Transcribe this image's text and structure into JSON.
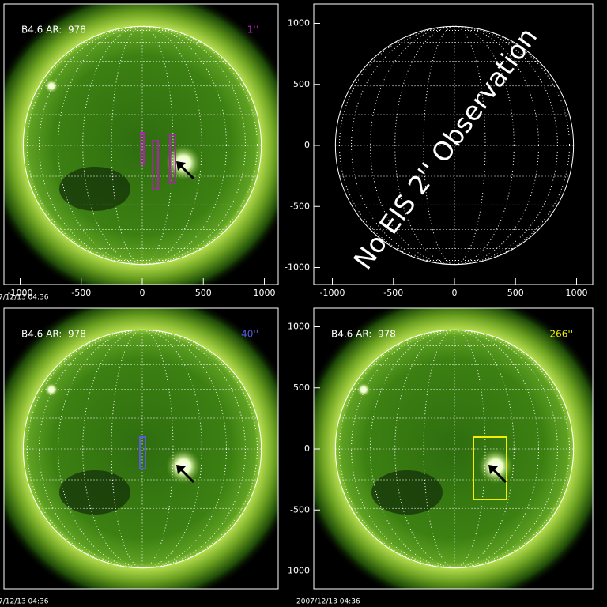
{
  "panels": [
    {
      "label": "B4.6 AR:  978",
      "slit": "1''",
      "slit_color": "#b020b0",
      "timestamp": "7/12/13 04:36",
      "xticks": [
        -1000,
        -500,
        0,
        500,
        1000
      ]
    },
    {
      "annotation": "No EIS 2'' Observation",
      "xticks": [
        -1000,
        -500,
        0,
        500,
        1000
      ],
      "yticks": [
        1000,
        500,
        0,
        -500,
        -1000
      ]
    },
    {
      "label": "B4.6 AR:  978",
      "slit": "40''",
      "slit_color": "#5a5ae0",
      "timestamp": "7/12/13 04:36"
    },
    {
      "label": "B4.6 AR:  978",
      "slit": "266''",
      "slit_color": "#f0f000",
      "timestamp": "2007/12/13 04:36",
      "yticks": [
        1000,
        500,
        0,
        -500,
        -1000
      ]
    }
  ]
}
